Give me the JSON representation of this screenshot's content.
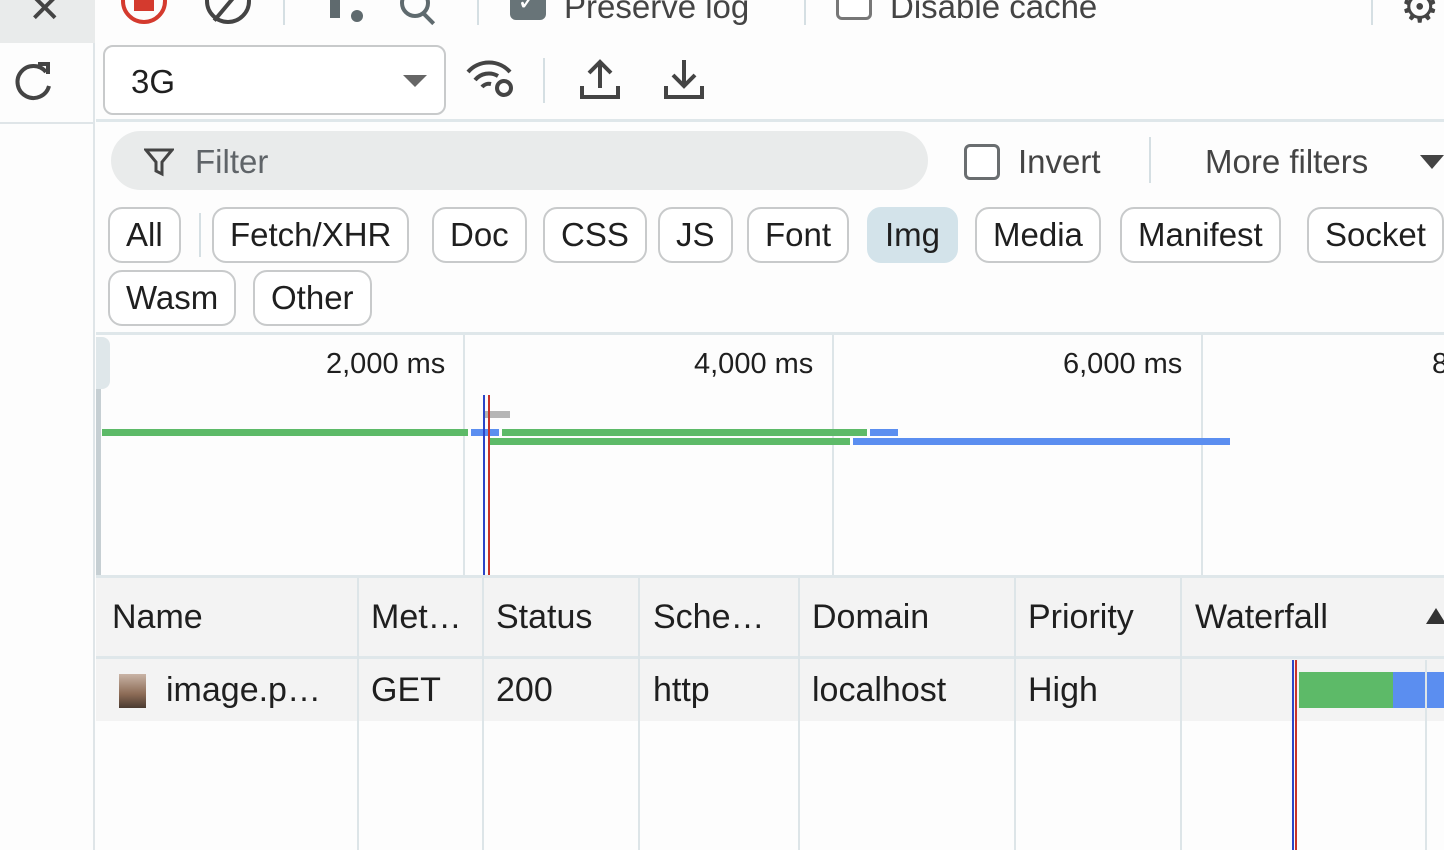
{
  "toolbar": {
    "preserve_log": "Preserve log",
    "preserve_log_checked": true,
    "disable_cache": "Disable cache",
    "disable_cache_checked": false,
    "throttling": "3G"
  },
  "filter": {
    "placeholder": "Filter",
    "invert": "Invert",
    "more_filters": "More filters"
  },
  "types": [
    "All",
    "Fetch/XHR",
    "Doc",
    "CSS",
    "JS",
    "Font",
    "Img",
    "Media",
    "Manifest",
    "Socket",
    "Wasm",
    "Other"
  ],
  "active_type": "Img",
  "timeline": {
    "ticks": [
      "2,000 ms",
      "4,000 ms",
      "6,000 ms",
      "8"
    ]
  },
  "table": {
    "headers": [
      "Name",
      "Met…",
      "Status",
      "Sche…",
      "Domain",
      "Priority",
      "Waterfall"
    ],
    "rows": [
      {
        "name": "image.p…",
        "method": "GET",
        "status": "200",
        "scheme": "http",
        "domain": "localhost",
        "priority": "High"
      }
    ]
  },
  "colors": {
    "waiting": "#5dba68",
    "download": "#5b8ef0",
    "dom_content_loaded": "#2b45c8",
    "load": "#c8322b"
  }
}
